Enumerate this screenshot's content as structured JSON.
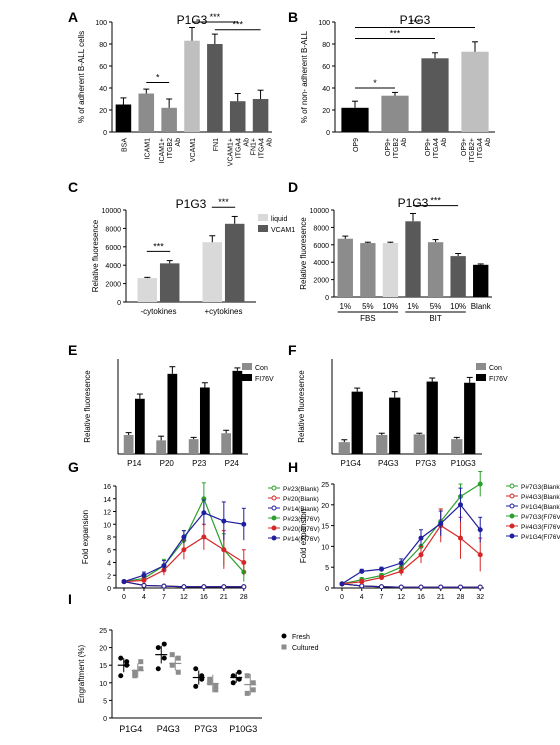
{
  "colors": {
    "black": "#000000",
    "dark": "#595959",
    "mid": "#8c8c8c",
    "light": "#bfbfbf",
    "lighter": "#d9d9d9",
    "green": "#2ca02c",
    "red": "#d62728",
    "blue": "#1f1f9f"
  },
  "chart_data": [
    {
      "id": "A",
      "panel_label": "A",
      "type": "bar",
      "title": "P1G3",
      "ylabel": "% of adherent B-ALL cells",
      "ylim": [
        0,
        100
      ],
      "yticks": [
        0,
        20,
        40,
        60,
        80,
        100
      ],
      "categories": [
        "BSA",
        "ICAM1",
        "ICAM1+ ITGB2 Ab",
        "VCAM1",
        "FN1",
        "VCAM1+ ITGA4 Ab",
        "FN1+ ITGA4 Ab"
      ],
      "values": [
        25,
        35,
        22,
        83,
        80,
        28,
        30
      ],
      "errors": [
        6,
        4,
        8,
        12,
        9,
        7,
        8
      ],
      "bar_colors": [
        "black",
        "mid",
        "mid",
        "light",
        "dark",
        "dark",
        "dark"
      ],
      "sig": [
        {
          "from": 1,
          "to": 2,
          "label": "*"
        },
        {
          "from": 3,
          "to": 5,
          "label": "***"
        },
        {
          "from": 4,
          "to": 6,
          "label": "***"
        }
      ]
    },
    {
      "id": "B",
      "panel_label": "B",
      "type": "bar",
      "title": "P1G3",
      "ylabel": "% of non- adherent B-ALL",
      "ylim": [
        0,
        100
      ],
      "yticks": [
        0,
        20,
        40,
        60,
        80,
        100
      ],
      "categories": [
        "OP9",
        "OP9+ ITGB2 Ab",
        "OP9+ ITGA4 Ab",
        "OP9+ ITGB2+ ITGA4 Ab"
      ],
      "values": [
        22,
        33,
        67,
        73
      ],
      "errors": [
        6,
        3,
        5,
        9
      ],
      "bar_colors": [
        "black",
        "mid",
        "dark",
        "light"
      ],
      "sig": [
        {
          "from": 0,
          "to": 1,
          "label": "*"
        },
        {
          "from": 0,
          "to": 2,
          "label": "***"
        },
        {
          "from": 0,
          "to": 3,
          "label": "***"
        }
      ]
    },
    {
      "id": "C",
      "panel_label": "C",
      "type": "bar",
      "title": "P1G3",
      "ylabel": "Relative fluoresence",
      "ylim": [
        0,
        10000
      ],
      "yticks": [
        0,
        2000,
        4000,
        6000,
        8000,
        10000
      ],
      "categories": [
        "-cytokines",
        "+cytokines"
      ],
      "series": [
        {
          "name": "liquid",
          "values": [
            2600,
            6500
          ],
          "errors": [
            80,
            700
          ]
        },
        {
          "name": "VCAM1",
          "values": [
            4200,
            8500
          ],
          "errors": [
            300,
            800
          ]
        }
      ],
      "series_colors": [
        "lighter",
        "dark"
      ],
      "sig": [
        {
          "group": 0,
          "label": "***"
        },
        {
          "group": 1,
          "label": "***"
        }
      ]
    },
    {
      "id": "D",
      "panel_label": "D",
      "type": "bar",
      "title": "P1G3",
      "ylabel": "Relative fluoresence",
      "ylim": [
        0,
        10000
      ],
      "yticks": [
        0,
        2000,
        4000,
        6000,
        8000,
        10000
      ],
      "categories": [
        "1%",
        "5%",
        "10%",
        "1%",
        "5%",
        "10%",
        "Blank"
      ],
      "groups": [
        "FBS",
        "BIT"
      ],
      "values": [
        6700,
        6200,
        6200,
        8700,
        6300,
        4700,
        3700
      ],
      "errors": [
        300,
        100,
        100,
        900,
        300,
        300,
        100
      ],
      "bar_colors": [
        "mid",
        "mid",
        "lighter",
        "dark",
        "mid",
        "dark",
        "black"
      ],
      "sig": [
        {
          "from": 3,
          "to": 5,
          "label": "***"
        }
      ]
    },
    {
      "id": "E",
      "panel_label": "E",
      "type": "bar",
      "ylabel": "Relative fluoresence",
      "categories": [
        "P14",
        "P20",
        "P23",
        "P24"
      ],
      "series": [
        {
          "name": "Con",
          "values": [
            3.2,
            2.3,
            2.5,
            3.5
          ],
          "errors": [
            0.4,
            0.7,
            0.3,
            0.5
          ]
        },
        {
          "name": "FI76V",
          "values": [
            9.3,
            13.5,
            11.2,
            14.0
          ],
          "errors": [
            0.8,
            1.2,
            0.8,
            0.5
          ]
        }
      ],
      "ylim": [
        0,
        16
      ],
      "series_colors": [
        "mid",
        "black"
      ]
    },
    {
      "id": "F",
      "panel_label": "F",
      "type": "bar",
      "ylabel": "Relative fluoresence",
      "categories": [
        "P1G4",
        "P4G3",
        "P7G3",
        "P10G3"
      ],
      "series": [
        {
          "name": "Con",
          "values": [
            2.0,
            3.2,
            3.3,
            2.5
          ],
          "errors": [
            0.4,
            0.3,
            0.2,
            0.3
          ]
        },
        {
          "name": "FI76V",
          "values": [
            10.5,
            9.5,
            12.2,
            12.0
          ],
          "errors": [
            0.6,
            1.0,
            0.6,
            0.9
          ]
        }
      ],
      "ylim": [
        0,
        16
      ],
      "series_colors": [
        "mid",
        "black"
      ]
    },
    {
      "id": "G",
      "panel_label": "G",
      "type": "line",
      "ylabel": "Fold expansion",
      "ylim": [
        0,
        16
      ],
      "yticks": [
        0,
        2,
        4,
        6,
        8,
        10,
        12,
        14,
        16
      ],
      "x": [
        "0",
        "4",
        "7",
        "12",
        "16",
        "21",
        "28"
      ],
      "series": [
        {
          "name": "P#23(Blank)",
          "color": "green",
          "open": true,
          "values": [
            1,
            0.4,
            0.3,
            0.2,
            0.2,
            0.2,
            0.2
          ],
          "errors": [
            0,
            0,
            0,
            0,
            0,
            0,
            0
          ]
        },
        {
          "name": "P#20(Blank)",
          "color": "red",
          "open": true,
          "values": [
            1,
            0.4,
            0.3,
            0.2,
            0.2,
            0.2,
            0.2
          ],
          "errors": [
            0,
            0,
            0,
            0,
            0,
            0,
            0
          ]
        },
        {
          "name": "P#14(Blank)",
          "color": "blue",
          "open": true,
          "values": [
            1,
            0.4,
            0.3,
            0.2,
            0.2,
            0.2,
            0.2
          ],
          "errors": [
            0,
            0,
            0,
            0,
            0,
            0,
            0
          ]
        },
        {
          "name": "P#23(FI76V)",
          "color": "green",
          "open": false,
          "values": [
            1,
            1.5,
            3.5,
            7.5,
            14,
            6,
            2.5
          ],
          "errors": [
            0,
            0.5,
            1,
            1.5,
            2.5,
            2.5,
            1.5
          ]
        },
        {
          "name": "P#20(FI76V)",
          "color": "red",
          "open": false,
          "values": [
            1,
            1.2,
            2.8,
            6,
            8,
            6,
            4
          ],
          "errors": [
            0,
            0.4,
            0.8,
            1.5,
            2,
            3,
            2
          ]
        },
        {
          "name": "P#14(FI76V)",
          "color": "blue",
          "open": false,
          "values": [
            1,
            2,
            3.5,
            8,
            11.8,
            10.5,
            10
          ],
          "errors": [
            0,
            0.5,
            0.8,
            1,
            2,
            3,
            2.5
          ]
        }
      ]
    },
    {
      "id": "H",
      "panel_label": "H",
      "type": "line",
      "ylabel": "Fold expansion",
      "ylim": [
        0,
        25
      ],
      "yticks": [
        0,
        5,
        10,
        15,
        20,
        25
      ],
      "x": [
        "0",
        "4",
        "7",
        "12",
        "16",
        "21",
        "28",
        "32"
      ],
      "series": [
        {
          "name": "P#7G3(Blank)",
          "color": "green",
          "open": true,
          "values": [
            1,
            0.5,
            0.3,
            0.2,
            0.2,
            0.2,
            0.2,
            0.2
          ],
          "errors": [
            0,
            0,
            0,
            0,
            0,
            0,
            0,
            0
          ]
        },
        {
          "name": "P#4G3(Blank)",
          "color": "red",
          "open": true,
          "values": [
            1,
            0.5,
            0.3,
            0.2,
            0.2,
            0.2,
            0.2,
            0.2
          ],
          "errors": [
            0,
            0,
            0,
            0,
            0,
            0,
            0,
            0
          ]
        },
        {
          "name": "P#1G4(Blank)",
          "color": "blue",
          "open": true,
          "values": [
            1,
            0.5,
            0.3,
            0.2,
            0.2,
            0.2,
            0.2,
            0.2
          ],
          "errors": [
            0,
            0,
            0,
            0,
            0,
            0,
            0,
            0
          ]
        },
        {
          "name": "P#7G3(FI76V)",
          "color": "green",
          "open": false,
          "values": [
            1,
            2,
            3,
            5,
            10,
            16,
            22,
            25
          ],
          "errors": [
            0,
            0.5,
            0.5,
            1,
            2,
            3,
            3,
            3
          ]
        },
        {
          "name": "P#4G3(FI76V)",
          "color": "red",
          "open": false,
          "values": [
            1,
            1.5,
            2.5,
            4,
            8,
            15,
            12,
            8
          ],
          "errors": [
            0,
            0.5,
            0.5,
            1,
            2,
            4,
            5,
            4
          ]
        },
        {
          "name": "P#1G4(FI76V)",
          "color": "blue",
          "open": false,
          "values": [
            1,
            4,
            4.5,
            6,
            12,
            15.5,
            20,
            14
          ],
          "errors": [
            0,
            0.5,
            0.5,
            1,
            2,
            3,
            4,
            3
          ]
        }
      ]
    },
    {
      "id": "I",
      "panel_label": "I",
      "type": "scatter",
      "ylabel": "Engraftment (%)",
      "ylim": [
        0,
        25
      ],
      "yticks": [
        0,
        5,
        10,
        15,
        20,
        25
      ],
      "categories": [
        "P1G4",
        "P4G3",
        "P7G3",
        "P10G3"
      ],
      "series": [
        {
          "name": "Fresh",
          "marker": "circle",
          "color": "black",
          "points": [
            [
              17,
              15,
              12,
              16
            ],
            [
              20,
              17,
              14,
              21
            ],
            [
              14,
              11,
              9,
              12
            ],
            [
              12,
              11,
              10,
              13
            ]
          ],
          "mean": [
            15,
            18,
            11.5,
            11.5
          ],
          "sd": [
            2,
            2.5,
            2,
            1.5
          ]
        },
        {
          "name": "Cultured",
          "marker": "square",
          "color": "mid",
          "points": [
            [
              12,
              14,
              13,
              16
            ],
            [
              15,
              13,
              18,
              17
            ],
            [
              11,
              9,
              10,
              8
            ],
            [
              12,
              8,
              7,
              10
            ]
          ],
          "mean": [
            13.5,
            15.5,
            9.8,
            9.5
          ],
          "sd": [
            2,
            2,
            2.5,
            3
          ]
        }
      ]
    }
  ]
}
